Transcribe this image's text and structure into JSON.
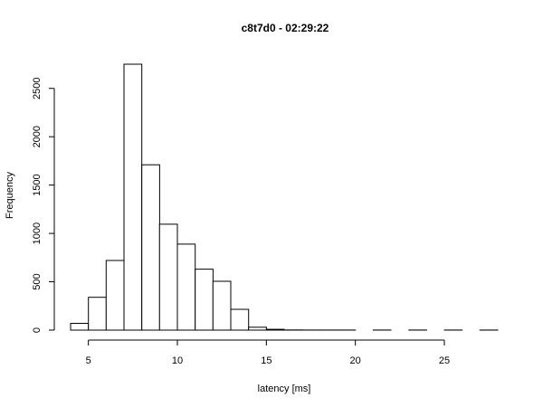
{
  "chart_data": {
    "type": "bar",
    "title": "c8t7d0 - 02:29:22",
    "xlabel": "latency [ms]",
    "ylabel": "Frequency",
    "xlim": [
      4,
      28
    ],
    "ylim": [
      0,
      2750
    ],
    "x_ticks": [
      5,
      10,
      15,
      20,
      25
    ],
    "y_ticks": [
      0,
      500,
      1000,
      1500,
      2000,
      2500
    ],
    "bins": [
      {
        "from": 4,
        "to": 5,
        "count": 70
      },
      {
        "from": 5,
        "to": 6,
        "count": 340
      },
      {
        "from": 6,
        "to": 7,
        "count": 720
      },
      {
        "from": 7,
        "to": 8,
        "count": 2750
      },
      {
        "from": 8,
        "to": 9,
        "count": 1710
      },
      {
        "from": 9,
        "to": 10,
        "count": 1095
      },
      {
        "from": 10,
        "to": 11,
        "count": 890
      },
      {
        "from": 11,
        "to": 12,
        "count": 630
      },
      {
        "from": 12,
        "to": 13,
        "count": 505
      },
      {
        "from": 13,
        "to": 14,
        "count": 215
      },
      {
        "from": 14,
        "to": 15,
        "count": 30
      },
      {
        "from": 15,
        "to": 16,
        "count": 8
      },
      {
        "from": 16,
        "to": 17,
        "count": 2
      },
      {
        "from": 17,
        "to": 18,
        "count": 1
      },
      {
        "from": 18,
        "to": 19,
        "count": 1
      },
      {
        "from": 19,
        "to": 20,
        "count": 1
      },
      {
        "from": 20,
        "to": 21,
        "count": 0
      },
      {
        "from": 21,
        "to": 22,
        "count": 1
      },
      {
        "from": 22,
        "to": 23,
        "count": 0
      },
      {
        "from": 23,
        "to": 24,
        "count": 1
      },
      {
        "from": 24,
        "to": 25,
        "count": 0
      },
      {
        "from": 25,
        "to": 26,
        "count": 1
      },
      {
        "from": 26,
        "to": 27,
        "count": 0
      },
      {
        "from": 27,
        "to": 28,
        "count": 1
      }
    ]
  }
}
